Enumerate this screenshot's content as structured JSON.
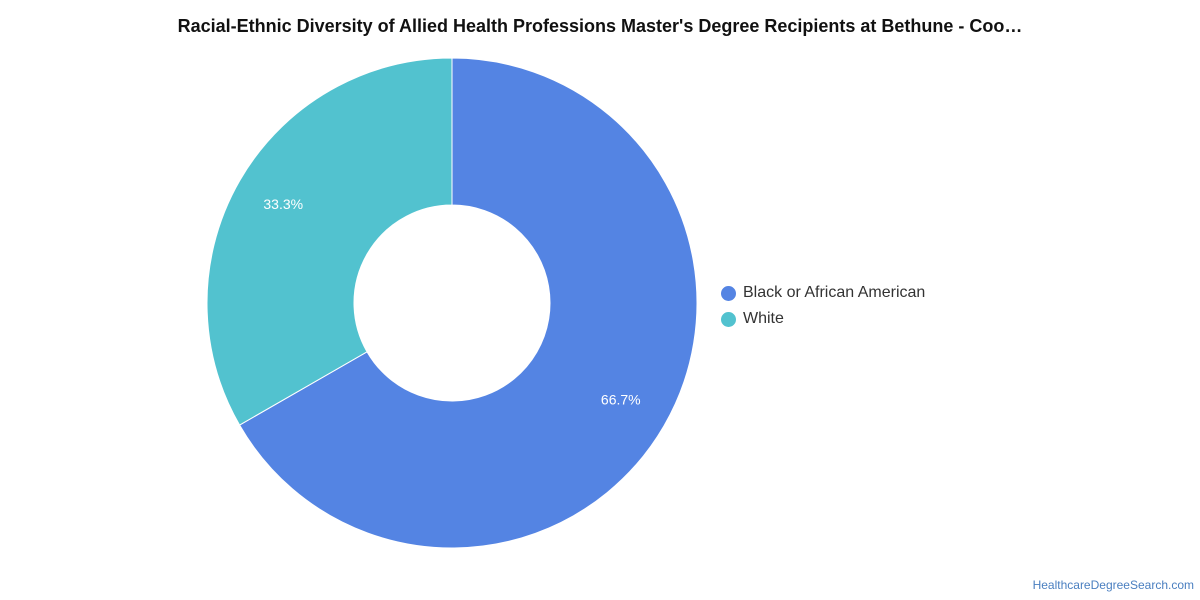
{
  "chart_data": {
    "type": "pie",
    "donut": true,
    "title": "Racial-Ethnic Diversity of Allied Health Professions Master's Degree Recipients at Bethune - Coo…",
    "slices": [
      {
        "name": "Black or African American",
        "value": 66.7,
        "label": "66.7%",
        "color": "#5484e3"
      },
      {
        "name": "White",
        "value": 33.3,
        "label": "33.3%",
        "color": "#52c2cf"
      }
    ],
    "legend_position": "right"
  },
  "footer": {
    "source": "HealthcareDegreeSearch.com"
  }
}
